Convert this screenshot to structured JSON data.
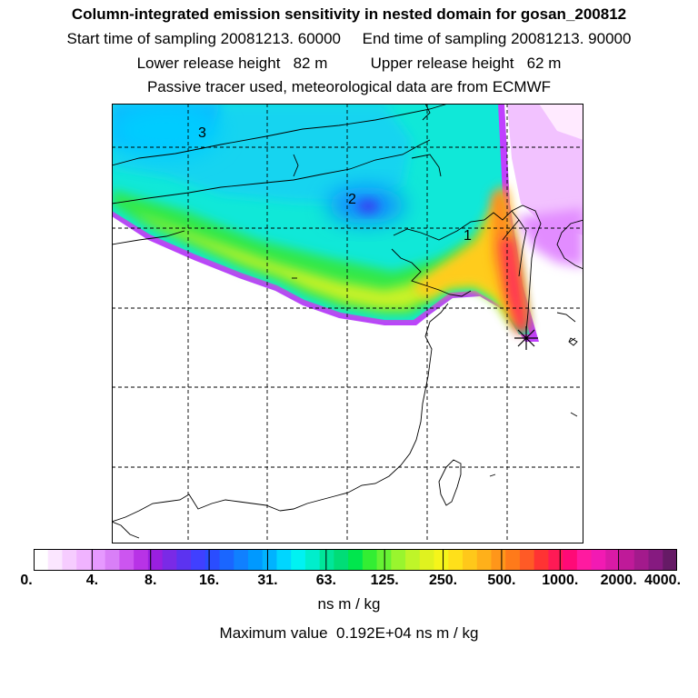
{
  "header": {
    "title": "Column-integrated emission sensitivity in nested domain for gosan_200812",
    "sampling_line": "Start time of sampling 20081213. 60000     End time of sampling 20081213. 90000",
    "release_line": "Lower release height   82 m          Upper release height   62 m",
    "source_line": "Passive tracer used, meteorological data are from ECMWF"
  },
  "map": {
    "markers": [
      {
        "label": "1"
      },
      {
        "label": "2"
      },
      {
        "label": "3"
      }
    ],
    "receptor_symbol": "star-icon",
    "gridlines": true
  },
  "colorbar": {
    "tick_labels": [
      "0.",
      "4.",
      "8.",
      "16.",
      "31.",
      "63.",
      "125.",
      "250.",
      "500.",
      "1000.",
      "2000.",
      "4000."
    ],
    "colors": [
      "#ffffff",
      "#fbe6ff",
      "#f6ccff",
      "#f0b3ff",
      "#e699ff",
      "#d97ff7",
      "#cc55f0",
      "#b833e6",
      "#9a1fe0",
      "#7a2ae6",
      "#5c33f0",
      "#4040ff",
      "#2a4dff",
      "#1a66ff",
      "#1080ff",
      "#0099ff",
      "#00b3ff",
      "#00d6ff",
      "#00f2f2",
      "#00eecc",
      "#00e699",
      "#00dd77",
      "#00e64d",
      "#33ee33",
      "#66f233",
      "#99f52e",
      "#bff529",
      "#e0f21f",
      "#f5f51a",
      "#ffe01a",
      "#ffc81a",
      "#ffb01a",
      "#ff961a",
      "#ff7a1a",
      "#ff5a26",
      "#ff3333",
      "#ff1a55",
      "#ff0a77",
      "#ff1aa0",
      "#f21ab3",
      "#d91aa6",
      "#bf1a99",
      "#a31a8c",
      "#861a80",
      "#661a66"
    ],
    "units": "ns m / kg"
  },
  "footer": {
    "max_label": "Maximum value ",
    "max_value": "0.192E+04",
    "max_units": "ns m / kg"
  }
}
